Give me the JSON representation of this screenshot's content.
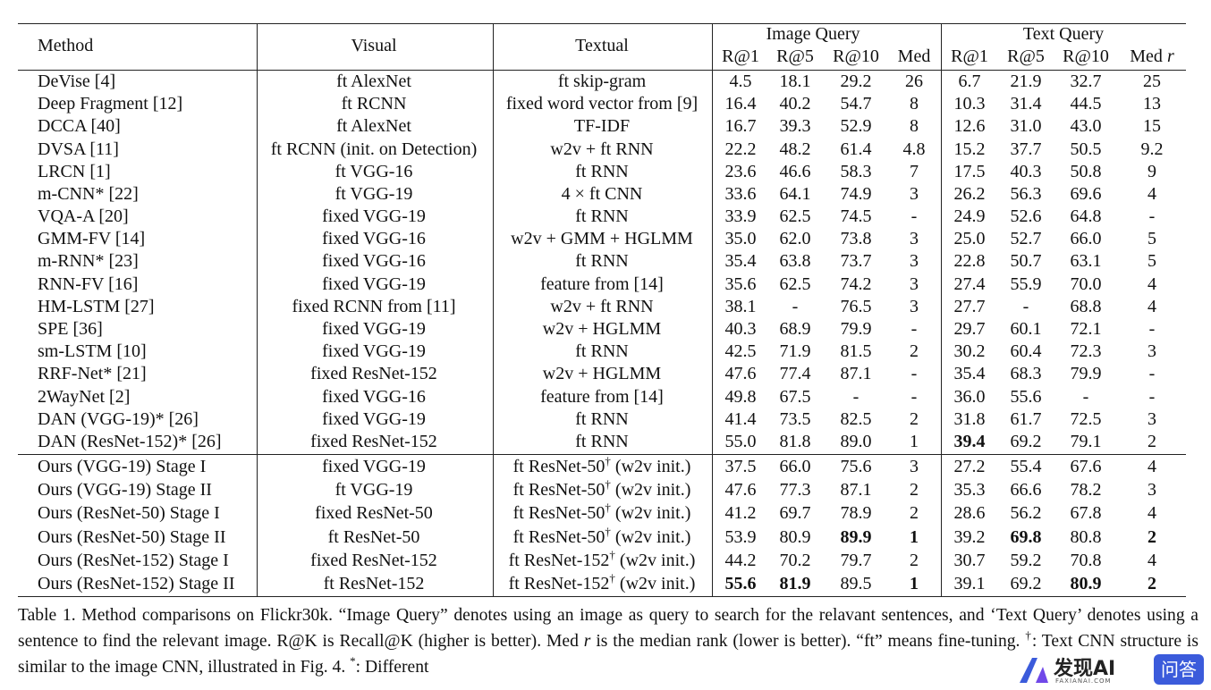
{
  "table": {
    "header": {
      "columns": [
        "Method",
        "Visual",
        "Textual"
      ],
      "groups": [
        "Image Query",
        "Text Query"
      ],
      "subcolumns": [
        "R@1",
        "R@5",
        "R@10",
        "Med",
        "R@1",
        "R@5",
        "R@10",
        "Med"
      ],
      "last_suffix": "r"
    },
    "groups": [
      {
        "rows": [
          {
            "cells": [
              "DeVise [4]",
              "ft AlexNet",
              "ft skip-gram",
              "4.5",
              "18.1",
              "29.2",
              "26",
              "6.7",
              "21.9",
              "32.7",
              "25"
            ]
          },
          {
            "cells": [
              "Deep Fragment [12]",
              "ft RCNN",
              "fixed word vector from [9]",
              "16.4",
              "40.2",
              "54.7",
              "8",
              "10.3",
              "31.4",
              "44.5",
              "13"
            ]
          },
          {
            "cells": [
              "DCCA [40]",
              "ft AlexNet",
              "TF-IDF",
              "16.7",
              "39.3",
              "52.9",
              "8",
              "12.6",
              "31.0",
              "43.0",
              "15"
            ]
          },
          {
            "cells": [
              "DVSA [11]",
              "ft RCNN (init. on Detection)",
              "w2v + ft RNN",
              "22.2",
              "48.2",
              "61.4",
              "4.8",
              "15.2",
              "37.7",
              "50.5",
              "9.2"
            ]
          },
          {
            "cells": [
              "LRCN [1]",
              "ft VGG-16",
              "ft RNN",
              "23.6",
              "46.6",
              "58.3",
              "7",
              "17.5",
              "40.3",
              "50.8",
              "9"
            ]
          },
          {
            "cells": [
              "m-CNN* [22]",
              "ft VGG-19",
              "4 × ft CNN",
              "33.6",
              "64.1",
              "74.9",
              "3",
              "26.2",
              "56.3",
              "69.6",
              "4"
            ]
          },
          {
            "cells": [
              "VQA-A [20]",
              "fixed VGG-19",
              "ft RNN",
              "33.9",
              "62.5",
              "74.5",
              "-",
              "24.9",
              "52.6",
              "64.8",
              "-"
            ]
          },
          {
            "cells": [
              "GMM-FV [14]",
              "fixed VGG-16",
              "w2v + GMM + HGLMM",
              "35.0",
              "62.0",
              "73.8",
              "3",
              "25.0",
              "52.7",
              "66.0",
              "5"
            ]
          },
          {
            "cells": [
              "m-RNN* [23]",
              "fixed VGG-16",
              "ft RNN",
              "35.4",
              "63.8",
              "73.7",
              "3",
              "22.8",
              "50.7",
              "63.1",
              "5"
            ]
          },
          {
            "cells": [
              "RNN-FV [16]",
              "fixed VGG-19",
              "feature from [14]",
              "35.6",
              "62.5",
              "74.2",
              "3",
              "27.4",
              "55.9",
              "70.0",
              "4"
            ]
          },
          {
            "cells": [
              "HM-LSTM [27]",
              "fixed RCNN from [11]",
              "w2v + ft RNN",
              "38.1",
              "-",
              "76.5",
              "3",
              "27.7",
              "-",
              "68.8",
              "4"
            ]
          },
          {
            "cells": [
              "SPE [36]",
              "fixed VGG-19",
              "w2v + HGLMM",
              "40.3",
              "68.9",
              "79.9",
              "-",
              "29.7",
              "60.1",
              "72.1",
              "-"
            ]
          },
          {
            "cells": [
              "sm-LSTM [10]",
              "fixed VGG-19",
              "ft RNN",
              "42.5",
              "71.9",
              "81.5",
              "2",
              "30.2",
              "60.4",
              "72.3",
              "3"
            ]
          },
          {
            "cells": [
              "RRF-Net* [21]",
              "fixed ResNet-152",
              "w2v + HGLMM",
              "47.6",
              "77.4",
              "87.1",
              "-",
              "35.4",
              "68.3",
              "79.9",
              "-"
            ]
          },
          {
            "cells": [
              "2WayNet [2]",
              "fixed VGG-16",
              "feature from [14]",
              "49.8",
              "67.5",
              "-",
              "-",
              "36.0",
              "55.6",
              "-",
              "-"
            ]
          },
          {
            "cells": [
              "DAN (VGG-19)* [26]",
              "fixed VGG-19",
              "ft RNN",
              "41.4",
              "73.5",
              "82.5",
              "2",
              "31.8",
              "61.7",
              "72.5",
              "3"
            ]
          },
          {
            "cells": [
              "DAN (ResNet-152)* [26]",
              "fixed ResNet-152",
              "ft RNN",
              "55.0",
              "81.8",
              "89.0",
              "1",
              "39.4",
              "69.2",
              "79.1",
              "2"
            ],
            "bold": [
              7
            ]
          }
        ]
      },
      {
        "rows": [
          {
            "cells": [
              "Ours (VGG-19) Stage I",
              "fixed VGG-19",
              {
                "text": "ft ResNet-50",
                "sup": "†",
                "after": " (w2v init.)"
              },
              "37.5",
              "66.0",
              "75.6",
              "3",
              "27.2",
              "55.4",
              "67.6",
              "4"
            ]
          },
          {
            "cells": [
              "Ours (VGG-19) Stage II",
              "ft VGG-19",
              {
                "text": "ft ResNet-50",
                "sup": "†",
                "after": " (w2v init.)"
              },
              "47.6",
              "77.3",
              "87.1",
              "2",
              "35.3",
              "66.6",
              "78.2",
              "3"
            ]
          },
          {
            "cells": [
              "Ours (ResNet-50) Stage I",
              "fixed ResNet-50",
              {
                "text": "ft ResNet-50",
                "sup": "†",
                "after": " (w2v init.)"
              },
              "41.2",
              "69.7",
              "78.9",
              "2",
              "28.6",
              "56.2",
              "67.8",
              "4"
            ]
          },
          {
            "cells": [
              "Ours (ResNet-50) Stage II",
              "ft ResNet-50",
              {
                "text": "ft ResNet-50",
                "sup": "†",
                "after": " (w2v init.)"
              },
              "53.9",
              "80.9",
              "89.9",
              "1",
              "39.2",
              "69.8",
              "80.8",
              "2"
            ],
            "bold": [
              5,
              6,
              8,
              10
            ]
          },
          {
            "cells": [
              "Ours (ResNet-152) Stage I",
              "fixed ResNet-152",
              {
                "text": "ft ResNet-152",
                "sup": "†",
                "after": " (w2v init.)"
              },
              "44.2",
              "70.2",
              "79.7",
              "2",
              "30.7",
              "59.2",
              "70.8",
              "4"
            ]
          },
          {
            "cells": [
              "Ours (ResNet-152) Stage II",
              "ft ResNet-152",
              {
                "text": "ft ResNet-152",
                "sup": "†",
                "after": " (w2v init.)"
              },
              "55.6",
              "81.9",
              "89.5",
              "1",
              "39.1",
              "69.2",
              "80.9",
              "2"
            ],
            "bold": [
              3,
              4,
              6,
              9,
              10
            ]
          }
        ]
      }
    ]
  },
  "caption": [
    {
      "text": "Table 1. Method comparisons on Flickr30k. “Image Query” denotes using an image as query to search for the relavant sentences, and ‘Text Query’ denotes using a sentence to find the relevant image. R@K is Recall@K (higher is better). Med "
    },
    {
      "text": "r",
      "style": "italic"
    },
    {
      "text": " is the median rank (lower is better). “ft” means fine-tuning. "
    },
    {
      "text": "†",
      "style": "sup"
    },
    {
      "text": ": Text CNN structure is similar to the image CNN, illustrated in Fig. 4. "
    },
    {
      "text": "*",
      "style": "sup"
    },
    {
      "text": ": Different"
    }
  ],
  "watermark": {
    "brand": "发现AI",
    "site": "FAXIANAI.COM",
    "badge": "问答"
  }
}
